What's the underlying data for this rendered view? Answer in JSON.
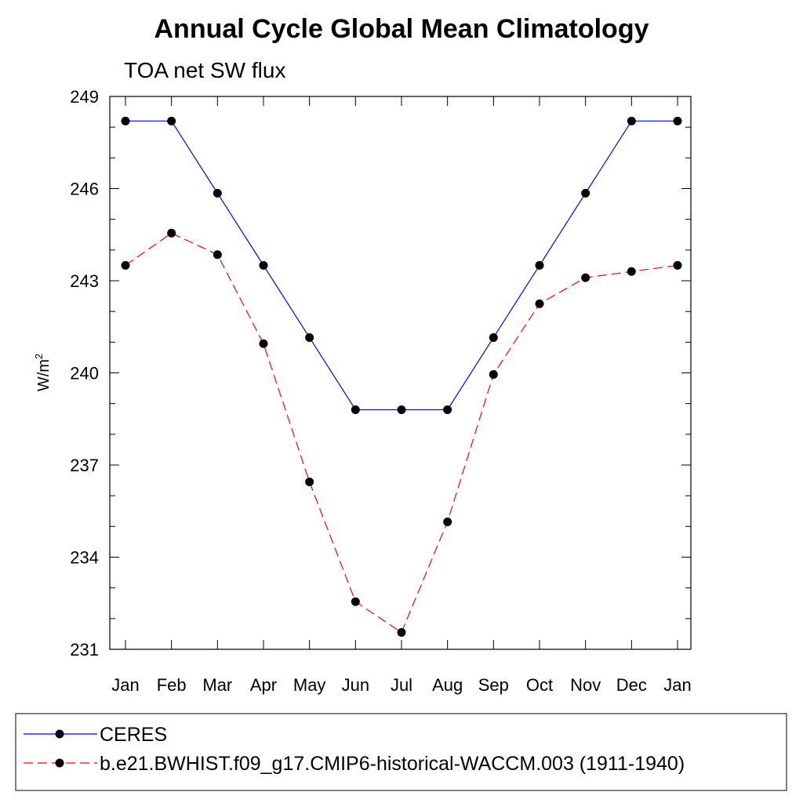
{
  "chart_data": {
    "type": "line",
    "title": "Annual Cycle Global Mean Climatology",
    "subtitle": "TOA net SW flux",
    "xlabel": "",
    "ylabel": "W/m",
    "ylabel_superscript": "2",
    "categories": [
      "Jan",
      "Feb",
      "Mar",
      "Apr",
      "May",
      "Jun",
      "Jul",
      "Aug",
      "Sep",
      "Oct",
      "Nov",
      "Dec",
      "Jan"
    ],
    "ylim": [
      231,
      249
    ],
    "yticks": [
      "249",
      "246",
      "243",
      "240",
      "237",
      "234",
      "231"
    ],
    "y_minor_step": 1,
    "grid": false,
    "legend_position": "bottom",
    "series": [
      {
        "name": "CERES",
        "color": "#0000ff",
        "line_style": "solid",
        "marker": "filled-circle",
        "values": [
          248.2,
          248.2,
          245.85,
          243.5,
          241.15,
          238.8,
          238.8,
          238.8,
          241.15,
          243.5,
          245.85,
          248.2,
          248.2
        ]
      },
      {
        "name": "b.e21.BWHIST.f09_g17.CMIP6-historical-WACCM.003 (1911-1940)",
        "color": "#ff0000",
        "line_style": "dashed",
        "marker": "filled-circle",
        "values": [
          243.5,
          244.55,
          243.85,
          240.95,
          236.45,
          232.55,
          231.55,
          235.15,
          239.95,
          242.25,
          243.1,
          243.3,
          243.5
        ]
      }
    ]
  }
}
